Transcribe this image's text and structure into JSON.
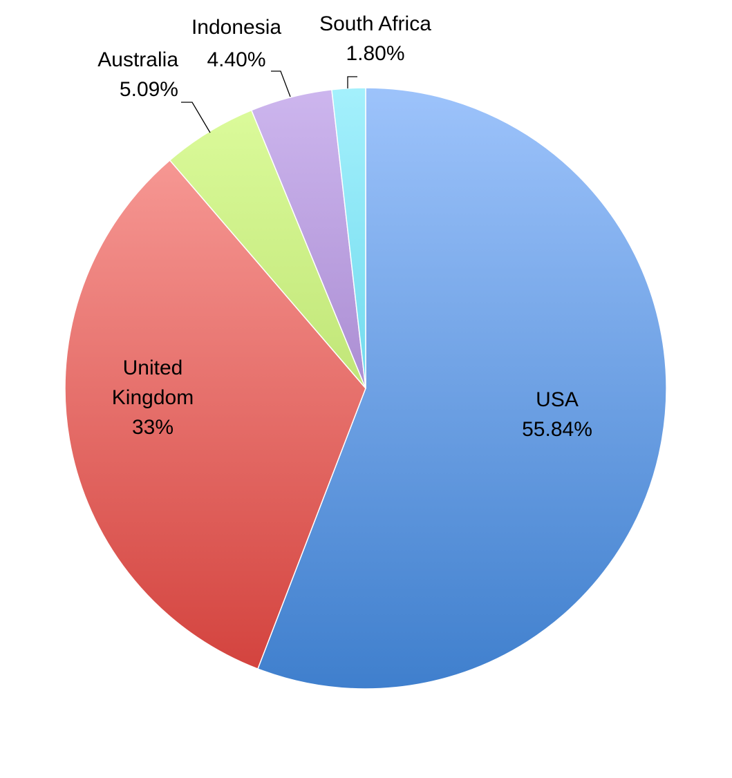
{
  "chart_data": {
    "type": "pie",
    "start_angle_deg": 0,
    "direction": "clockwise",
    "slices": [
      {
        "name": "USA",
        "value": 55.84,
        "label_lines": [
          "USA",
          "55.84%"
        ],
        "color_top": "#9dc3fb",
        "color_bottom": "#3f7fcd"
      },
      {
        "name": "United Kingdom",
        "value": 32.87,
        "label_lines": [
          "United",
          "Kingdom",
          "33%"
        ],
        "color_top": "#fba39f",
        "color_bottom": "#d2403b"
      },
      {
        "name": "Australia",
        "value": 5.09,
        "label_lines": [
          "Australia",
          "5.09%"
        ],
        "color_top": "#ddfc9d",
        "color_bottom": "#a4cf52"
      },
      {
        "name": "Indonesia",
        "value": 4.4,
        "label_lines": [
          "Indonesia",
          "4.40%"
        ],
        "color_top": "#cdb6ee",
        "color_bottom": "#8a66b8"
      },
      {
        "name": "South Africa",
        "value": 1.8,
        "label_lines": [
          "South Africa",
          "1.80%"
        ],
        "color_top": "#a4f0fc",
        "color_bottom": "#3fc6e0"
      }
    ],
    "legend": "none",
    "edge_color": "#ffffff"
  }
}
